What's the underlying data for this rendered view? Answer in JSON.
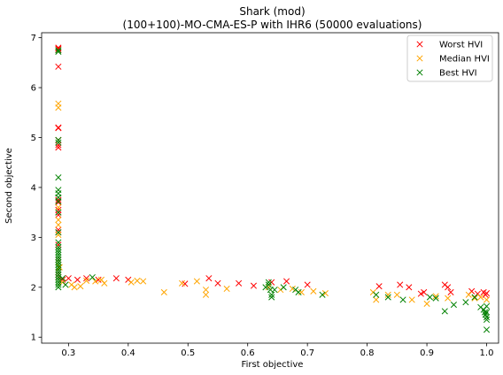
{
  "chart_data": {
    "type": "scatter",
    "title": "Shark (mod)",
    "subtitle": "(100+100)-MO-CMA-ES-P with IHR6 (50000 evaluations)",
    "xlabel": "First objective",
    "ylabel": "Second objective",
    "xlim": [
      0.255,
      1.02
    ],
    "ylim": [
      0.88,
      7.1
    ],
    "xticks": [
      "0.3",
      "0.4",
      "0.5",
      "0.6",
      "0.7",
      "0.8",
      "0.9",
      "1.0"
    ],
    "yticks": [
      "1",
      "2",
      "3",
      "4",
      "5",
      "6",
      "7"
    ],
    "grid": false,
    "legend_position": "top-right",
    "marker": "x",
    "series": [
      {
        "name": "Worst HVI",
        "color": "#ff0000",
        "points": [
          [
            0.283,
            6.8
          ],
          [
            0.283,
            6.78
          ],
          [
            0.283,
            6.75
          ],
          [
            0.283,
            6.42
          ],
          [
            0.283,
            5.2
          ],
          [
            0.283,
            5.19
          ],
          [
            0.283,
            4.95
          ],
          [
            0.283,
            4.85
          ],
          [
            0.283,
            4.8
          ],
          [
            0.283,
            3.75
          ],
          [
            0.283,
            3.7
          ],
          [
            0.283,
            3.55
          ],
          [
            0.283,
            3.5
          ],
          [
            0.283,
            3.45
          ],
          [
            0.283,
            3.15
          ],
          [
            0.283,
            3.1
          ],
          [
            0.283,
            2.85
          ],
          [
            0.283,
            2.55
          ],
          [
            0.283,
            2.3
          ],
          [
            0.283,
            2.25
          ],
          [
            0.283,
            2.2
          ],
          [
            0.29,
            2.15
          ],
          [
            0.3,
            2.18
          ],
          [
            0.315,
            2.15
          ],
          [
            0.33,
            2.18
          ],
          [
            0.35,
            2.15
          ],
          [
            0.38,
            2.18
          ],
          [
            0.4,
            2.15
          ],
          [
            0.495,
            2.07
          ],
          [
            0.535,
            2.18
          ],
          [
            0.55,
            2.08
          ],
          [
            0.585,
            2.08
          ],
          [
            0.61,
            2.03
          ],
          [
            0.64,
            2.1
          ],
          [
            0.665,
            2.12
          ],
          [
            0.7,
            2.05
          ],
          [
            0.82,
            2.02
          ],
          [
            0.855,
            2.05
          ],
          [
            0.87,
            2.0
          ],
          [
            0.89,
            1.87
          ],
          [
            0.895,
            1.9
          ],
          [
            0.93,
            2.05
          ],
          [
            0.935,
            2.0
          ],
          [
            0.94,
            1.9
          ],
          [
            0.975,
            1.92
          ],
          [
            0.985,
            1.87
          ],
          [
            0.995,
            1.9
          ],
          [
            0.998,
            1.85
          ],
          [
            1.0,
            1.88
          ]
        ]
      },
      {
        "name": "Median HVI",
        "color": "#ffa500",
        "points": [
          [
            0.283,
            5.68
          ],
          [
            0.283,
            5.6
          ],
          [
            0.283,
            3.6
          ],
          [
            0.283,
            3.35
          ],
          [
            0.283,
            3.25
          ],
          [
            0.283,
            3.05
          ],
          [
            0.283,
            2.5
          ],
          [
            0.285,
            2.4
          ],
          [
            0.29,
            2.1
          ],
          [
            0.305,
            2.05
          ],
          [
            0.31,
            2.0
          ],
          [
            0.32,
            2.02
          ],
          [
            0.33,
            2.13
          ],
          [
            0.345,
            2.12
          ],
          [
            0.355,
            2.15
          ],
          [
            0.36,
            2.08
          ],
          [
            0.405,
            2.1
          ],
          [
            0.415,
            2.13
          ],
          [
            0.425,
            2.12
          ],
          [
            0.46,
            1.9
          ],
          [
            0.49,
            2.08
          ],
          [
            0.515,
            2.12
          ],
          [
            0.53,
            1.85
          ],
          [
            0.53,
            1.95
          ],
          [
            0.565,
            1.97
          ],
          [
            0.635,
            2.0
          ],
          [
            0.655,
            1.95
          ],
          [
            0.675,
            1.97
          ],
          [
            0.69,
            1.9
          ],
          [
            0.71,
            1.92
          ],
          [
            0.73,
            1.88
          ],
          [
            0.81,
            1.9
          ],
          [
            0.815,
            1.75
          ],
          [
            0.835,
            1.85
          ],
          [
            0.85,
            1.85
          ],
          [
            0.875,
            1.75
          ],
          [
            0.9,
            1.67
          ],
          [
            0.915,
            1.82
          ],
          [
            0.935,
            1.78
          ],
          [
            0.97,
            1.85
          ],
          [
            0.98,
            1.78
          ],
          [
            0.99,
            1.8
          ],
          [
            1.0,
            1.75
          ]
        ]
      },
      {
        "name": "Best HVI",
        "color": "#008000",
        "points": [
          [
            0.283,
            6.75
          ],
          [
            0.283,
            6.72
          ],
          [
            0.283,
            4.95
          ],
          [
            0.283,
            4.9
          ],
          [
            0.283,
            4.2
          ],
          [
            0.283,
            3.95
          ],
          [
            0.283,
            3.88
          ],
          [
            0.283,
            3.8
          ],
          [
            0.283,
            3.72
          ],
          [
            0.283,
            3.5
          ],
          [
            0.283,
            3.1
          ],
          [
            0.283,
            2.9
          ],
          [
            0.283,
            2.8
          ],
          [
            0.283,
            2.75
          ],
          [
            0.283,
            2.7
          ],
          [
            0.283,
            2.65
          ],
          [
            0.283,
            2.6
          ],
          [
            0.283,
            2.55
          ],
          [
            0.283,
            2.5
          ],
          [
            0.283,
            2.45
          ],
          [
            0.283,
            2.4
          ],
          [
            0.283,
            2.35
          ],
          [
            0.283,
            2.3
          ],
          [
            0.283,
            2.25
          ],
          [
            0.283,
            2.2
          ],
          [
            0.283,
            2.15
          ],
          [
            0.283,
            2.1
          ],
          [
            0.283,
            2.05
          ],
          [
            0.283,
            2.0
          ],
          [
            0.29,
            2.18
          ],
          [
            0.295,
            2.05
          ],
          [
            0.34,
            2.2
          ],
          [
            0.63,
            2.0
          ],
          [
            0.635,
            2.1
          ],
          [
            0.635,
            2.05
          ],
          [
            0.638,
            1.95
          ],
          [
            0.64,
            1.85
          ],
          [
            0.64,
            1.8
          ],
          [
            0.645,
            1.95
          ],
          [
            0.66,
            2.0
          ],
          [
            0.68,
            1.95
          ],
          [
            0.685,
            1.9
          ],
          [
            0.725,
            1.85
          ],
          [
            0.815,
            1.85
          ],
          [
            0.835,
            1.8
          ],
          [
            0.86,
            1.75
          ],
          [
            0.905,
            1.8
          ],
          [
            0.915,
            1.78
          ],
          [
            0.93,
            1.52
          ],
          [
            0.945,
            1.65
          ],
          [
            0.965,
            1.7
          ],
          [
            0.98,
            1.8
          ],
          [
            0.99,
            1.6
          ],
          [
            0.995,
            1.55
          ],
          [
            0.997,
            1.5
          ],
          [
            0.998,
            1.45
          ],
          [
            1.0,
            1.4
          ],
          [
            1.0,
            1.35
          ],
          [
            1.0,
            1.5
          ],
          [
            1.0,
            1.62
          ],
          [
            1.0,
            1.15
          ]
        ]
      }
    ]
  }
}
